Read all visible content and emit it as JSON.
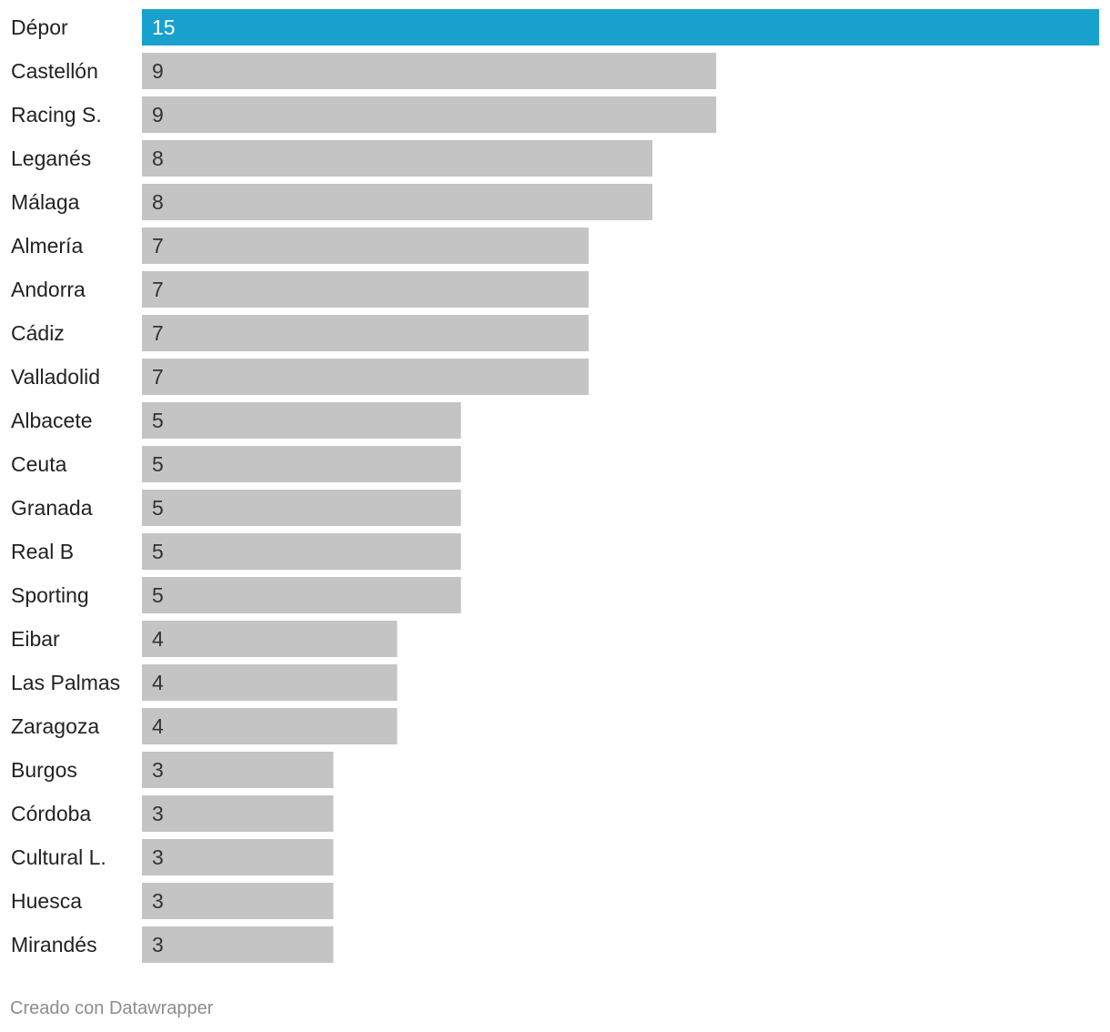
{
  "chart_data": {
    "type": "bar",
    "orientation": "horizontal",
    "categories": [
      "Dépor",
      "Castellón",
      "Racing S.",
      "Leganés",
      "Málaga",
      "Almería",
      "Andorra",
      "Cádiz",
      "Valladolid",
      "Albacete",
      "Ceuta",
      "Granada",
      "Real B",
      "Sporting",
      "Eibar",
      "Las Palmas",
      "Zaragoza",
      "Burgos",
      "Córdoba",
      "Cultural L.",
      "Huesca",
      "Mirandés"
    ],
    "values": [
      15,
      9,
      9,
      8,
      8,
      7,
      7,
      7,
      7,
      5,
      5,
      5,
      5,
      5,
      4,
      4,
      4,
      3,
      3,
      3,
      3,
      3
    ],
    "title": "",
    "xlabel": "",
    "ylabel": "",
    "xlim": [
      0,
      15
    ],
    "grid": false,
    "legend": "none",
    "highlight_category": "Dépor",
    "colors": {
      "highlight": "#18a1cd",
      "default": "#c4c4c4",
      "highlight_text": "#ffffff",
      "default_text": "#333333"
    }
  },
  "footer": {
    "credit": "Creado con Datawrapper"
  }
}
